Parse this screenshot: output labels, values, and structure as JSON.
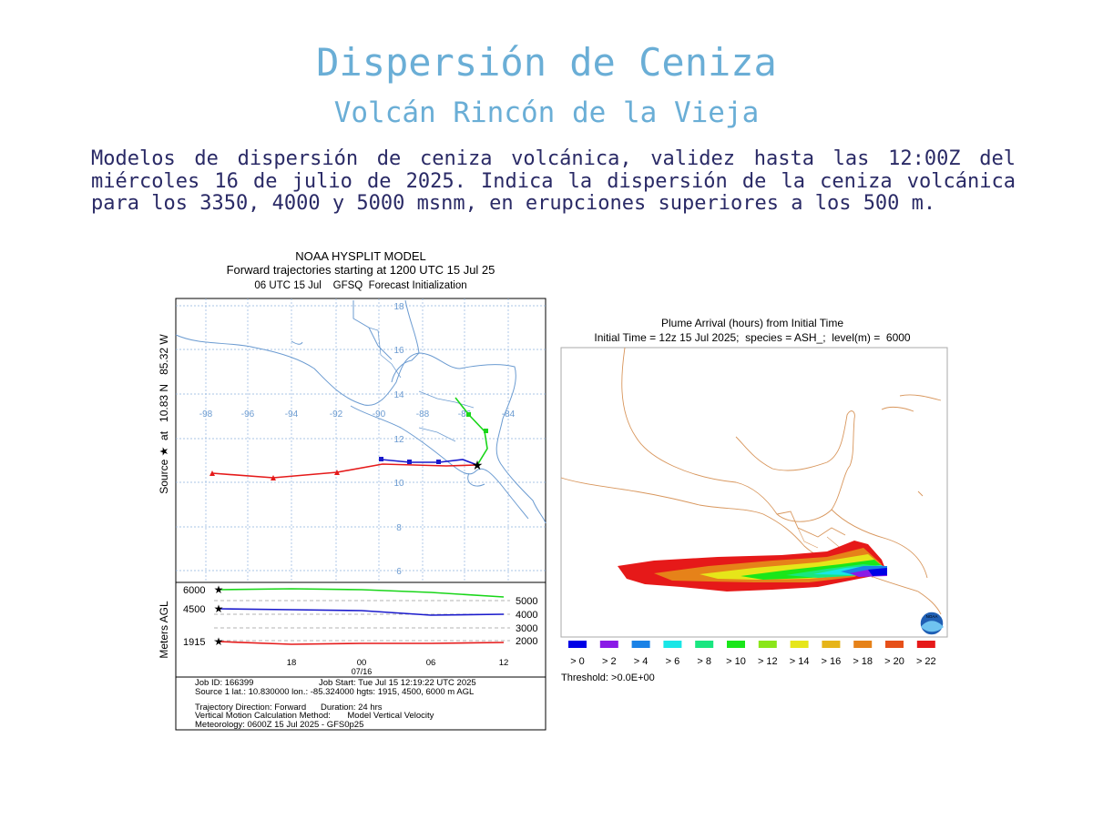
{
  "header": {
    "title": "Dispersión de Ceniza",
    "subtitle": "Volcán Rincón de la Vieja",
    "description": "Modelos de dispersión de ceniza volcánica, validez hasta las 12:00Z del miércoles 16 de julio de 2025. Indica la dispersión de la ceniza volcánica para los 3350, 4000 y 5000 msnm, en erupciones superiores a los 500 m."
  },
  "left_map": {
    "title1": "NOAA HYSPLIT MODEL",
    "title2": "Forward trajectories starting at 1200 UTC 15 Jul 25",
    "title3": "06 UTC 15 Jul    GFSQ  Forecast Initialization",
    "side_label": "Source ★  at   10.83 N   85.32 W",
    "lon_ticks": [
      "-98",
      "-96",
      "-94",
      "-92",
      "-90",
      "-88",
      "-86",
      "-84"
    ],
    "lat_ticks": [
      "18",
      "16",
      "14",
      "12",
      "10",
      "8",
      "6"
    ],
    "profile_ylabel": "Meters AGL",
    "profile_left_labels": [
      "6000",
      "4500",
      "1915"
    ],
    "profile_right_labels": [
      "5000",
      "4000",
      "3000",
      "2000"
    ],
    "time_ticks": [
      "18",
      "00",
      "06",
      "12"
    ],
    "date_label": "07/16",
    "trajectory_colors": {
      "low": "#e51a1a",
      "mid": "#1a1acc",
      "high": "#19d619"
    },
    "info": {
      "line1a": "Job ID: 166399",
      "line1b": "Job Start: Tue Jul 15 12:19:22 UTC 2025",
      "line2": "Source 1 lat.: 10.830000  lon.: -85.324000  hgts: 1915, 4500, 6000 m AGL",
      "line3": "Trajectory Direction: Forward      Duration: 24 hrs",
      "line4": "Vertical Motion Calculation Method:       Model Vertical Velocity",
      "line5": "Meteorology: 0600Z 15 Jul 2025 - GFS0p25"
    }
  },
  "right_map": {
    "title1": "Plume Arrival (hours) from Initial Time",
    "title2": "Initial Time = 12z 15 Jul 2025;  species = ASH_;  level(m) =  6000",
    "logo_text": "NOAA",
    "legend": [
      {
        "label": "> 0",
        "color": "#0000e6"
      },
      {
        "label": "> 2",
        "color": "#8a1ae6"
      },
      {
        "label": "> 4",
        "color": "#1a82e6"
      },
      {
        "label": "> 6",
        "color": "#19e6e6"
      },
      {
        "label": "> 8",
        "color": "#19e680"
      },
      {
        "label": "> 10",
        "color": "#19e619"
      },
      {
        "label": "> 12",
        "color": "#8ae619"
      },
      {
        "label": "> 14",
        "color": "#e6e619"
      },
      {
        "label": "> 16",
        "color": "#e6b419"
      },
      {
        "label": "> 18",
        "color": "#e68219"
      },
      {
        "label": "> 20",
        "color": "#e65019"
      },
      {
        "label": "> 22",
        "color": "#e61919"
      }
    ],
    "threshold": "Threshold: >0.0E+00"
  }
}
